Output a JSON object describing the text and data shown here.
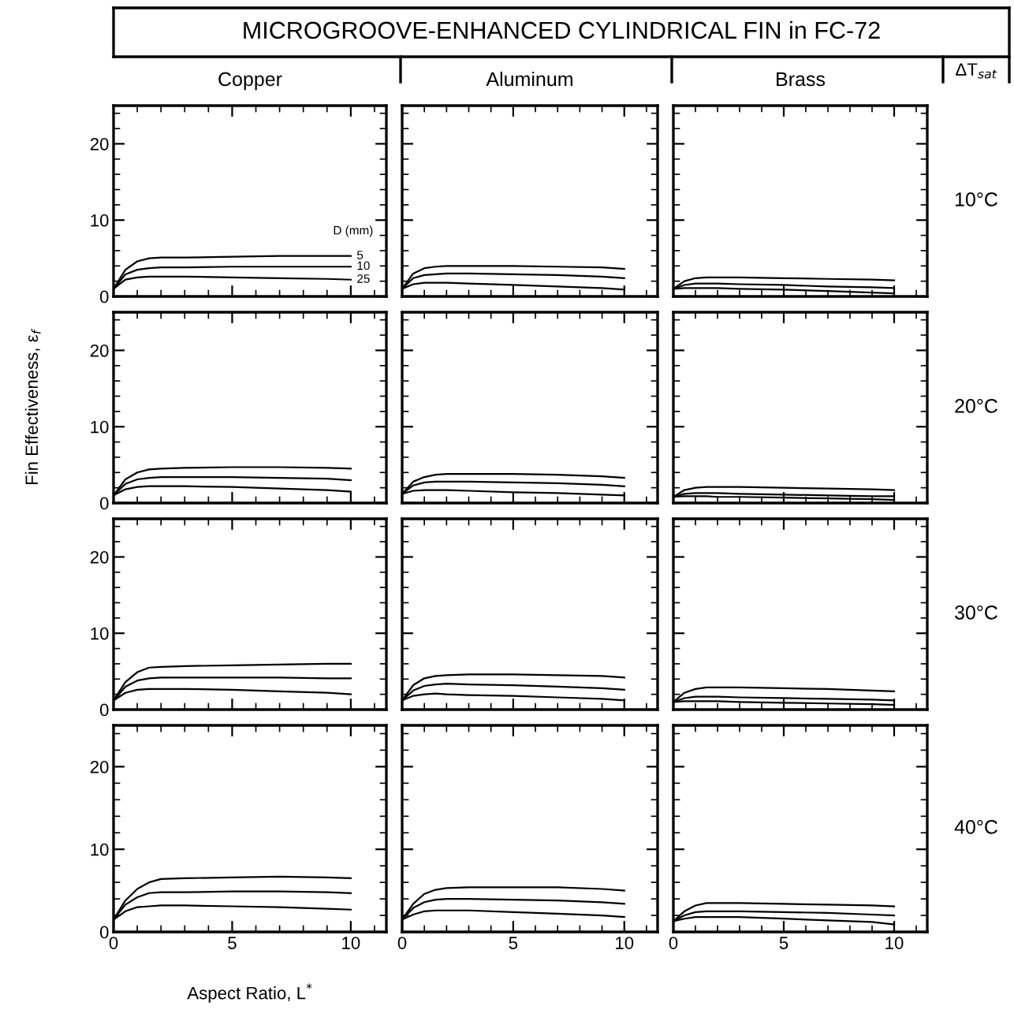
{
  "chart_data": [
    {
      "type": "line",
      "title": "Copper",
      "annotations": [
        "MICROGROOVE-ENHANCED CYLINDRICAL FIN in FC-72"
      ],
      "legend_title": "D (mm)",
      "legend": "right",
      "tick_labels": "y",
      "xlim": [
        0,
        11.5
      ],
      "ylim": [
        0,
        25
      ],
      "xticks": [
        0,
        5,
        10
      ],
      "yticks": [
        0,
        10,
        20
      ],
      "x": [
        0,
        0.5,
        1,
        1.5,
        2,
        3,
        5,
        7,
        9,
        10
      ],
      "series": [
        {
          "name": "5",
          "color": "#000000",
          "values": [
            1,
            3.5,
            4.6,
            5,
            5.1,
            5.1,
            5.2,
            5.3,
            5.3,
            5.3
          ]
        },
        {
          "name": "10",
          "color": "#000000",
          "values": [
            1,
            2.9,
            3.5,
            3.7,
            3.8,
            3.8,
            3.9,
            3.9,
            3.9,
            3.9
          ]
        },
        {
          "name": "25",
          "color": "#000000",
          "values": [
            1,
            2.2,
            2.5,
            2.6,
            2.6,
            2.6,
            2.5,
            2.4,
            2.3,
            2.2
          ]
        }
      ]
    },
    {
      "type": "line",
      "title": "Aluminum",
      "tick_labels": false,
      "xlim": [
        0,
        11.5
      ],
      "ylim": [
        0,
        25
      ],
      "xticks": [
        0,
        5,
        10
      ],
      "yticks": [
        0,
        10,
        20
      ],
      "x": [
        0,
        0.5,
        1,
        1.5,
        2,
        3,
        5,
        7,
        9,
        10
      ],
      "series": [
        {
          "color": "#000000",
          "values": [
            1,
            3.0,
            3.7,
            3.9,
            4,
            4,
            4,
            3.9,
            3.8,
            3.6
          ]
        },
        {
          "color": "#000000",
          "values": [
            1,
            2.4,
            2.8,
            2.9,
            3,
            3,
            2.9,
            2.8,
            2.6,
            2.4
          ]
        },
        {
          "color": "#000000",
          "values": [
            1,
            1.6,
            1.8,
            1.8,
            1.8,
            1.7,
            1.5,
            1.3,
            1.1,
            0.9
          ]
        }
      ]
    },
    {
      "type": "line",
      "title": "Brass",
      "annotations": [
        "ΔT$_{sat}$",
        "10°C"
      ],
      "tick_labels": false,
      "xlim": [
        0,
        11.5
      ],
      "ylim": [
        0,
        25
      ],
      "xticks": [
        0,
        5,
        10
      ],
      "yticks": [
        0,
        10,
        20
      ],
      "x": [
        0,
        0.5,
        1,
        1.5,
        2,
        3,
        5,
        7,
        9,
        10
      ],
      "series": [
        {
          "color": "#000000",
          "values": [
            1,
            2,
            2.4,
            2.5,
            2.5,
            2.5,
            2.4,
            2.3,
            2.2,
            2.1
          ]
        },
        {
          "color": "#000000",
          "values": [
            1,
            1.5,
            1.7,
            1.7,
            1.7,
            1.6,
            1.5,
            1.3,
            1.2,
            1.1
          ]
        },
        {
          "color": "#000000",
          "values": [
            1,
            1.1,
            1.1,
            1.1,
            1.1,
            1.0,
            0.9,
            0.7,
            0.5,
            0.4
          ]
        }
      ]
    },
    {
      "type": "line",
      "ylabel": "Fin Effectiveness, ε$_{f}$",
      "tick_labels": "y",
      "xlim": [
        0,
        11.5
      ],
      "ylim": [
        0,
        25
      ],
      "xticks": [
        0,
        5,
        10
      ],
      "yticks": [
        0,
        10,
        20
      ],
      "x": [
        0,
        0.5,
        1,
        1.5,
        2,
        3,
        5,
        7,
        9,
        10
      ],
      "series": [
        {
          "color": "#000000",
          "values": [
            1,
            3.1,
            4,
            4.4,
            4.5,
            4.6,
            4.7,
            4.7,
            4.6,
            4.5
          ]
        },
        {
          "color": "#000000",
          "values": [
            1,
            2.5,
            3.1,
            3.3,
            3.4,
            3.4,
            3.4,
            3.3,
            3.2,
            3.0
          ]
        },
        {
          "color": "#000000",
          "values": [
            1,
            1.8,
            2.1,
            2.2,
            2.2,
            2.2,
            2.1,
            1.9,
            1.7,
            1.5
          ]
        }
      ]
    },
    {
      "type": "line",
      "xlim": [
        0,
        11.5
      ],
      "ylim": [
        0,
        25
      ],
      "xticks": [
        0,
        5,
        10
      ],
      "yticks": [
        0,
        10,
        20
      ],
      "tick_labels": false,
      "x": [
        0,
        0.5,
        1,
        1.5,
        2,
        3,
        5,
        7,
        9,
        10
      ],
      "series": [
        {
          "color": "#000000",
          "values": [
            1.2,
            2.8,
            3.4,
            3.7,
            3.8,
            3.8,
            3.8,
            3.7,
            3.5,
            3.3
          ]
        },
        {
          "color": "#000000",
          "values": [
            1.2,
            2.3,
            2.7,
            2.8,
            2.8,
            2.8,
            2.7,
            2.6,
            2.4,
            2.2
          ]
        },
        {
          "color": "#000000",
          "values": [
            1.2,
            1.6,
            1.7,
            1.7,
            1.7,
            1.6,
            1.4,
            1.3,
            1.1,
            1.0
          ]
        }
      ]
    },
    {
      "type": "line",
      "annotations": [
        "20°C"
      ],
      "tick_labels": false,
      "xlim": [
        0,
        11.5
      ],
      "ylim": [
        0,
        25
      ],
      "xticks": [
        0,
        5,
        10
      ],
      "yticks": [
        0,
        10,
        20
      ],
      "x": [
        0,
        0.5,
        1,
        1.5,
        2,
        3,
        5,
        7,
        9,
        10
      ],
      "series": [
        {
          "color": "#000000",
          "values": [
            0.8,
            1.7,
            2.0,
            2.1,
            2.1,
            2.1,
            2.0,
            1.9,
            1.8,
            1.7
          ]
        },
        {
          "color": "#000000",
          "values": [
            0.8,
            1.2,
            1.3,
            1.3,
            1.3,
            1.2,
            1.1,
            1.0,
            0.9,
            0.9
          ]
        },
        {
          "color": "#000000",
          "values": [
            0.8,
            0.9,
            0.9,
            0.9,
            0.8,
            0.8,
            0.7,
            0.6,
            0.5,
            0.4
          ]
        }
      ]
    },
    {
      "type": "line",
      "xlim": [
        0,
        11.5
      ],
      "ylim": [
        0,
        25
      ],
      "xticks": [
        0,
        5,
        10
      ],
      "yticks": [
        0,
        10,
        20
      ],
      "tick_labels": "y",
      "x": [
        0,
        0.5,
        1,
        1.5,
        2,
        3,
        5,
        7,
        9,
        10
      ],
      "series": [
        {
          "color": "#000000",
          "values": [
            1.2,
            3.6,
            4.9,
            5.5,
            5.6,
            5.7,
            5.8,
            5.9,
            6.0,
            6.0
          ]
        },
        {
          "color": "#000000",
          "values": [
            1.2,
            3.0,
            3.8,
            4.1,
            4.2,
            4.2,
            4.2,
            4.2,
            4.1,
            4.1
          ]
        },
        {
          "color": "#000000",
          "values": [
            1.2,
            2.2,
            2.6,
            2.7,
            2.7,
            2.7,
            2.6,
            2.4,
            2.2,
            2.0
          ]
        }
      ]
    },
    {
      "type": "line",
      "xlim": [
        0,
        11.5
      ],
      "ylim": [
        0,
        25
      ],
      "xticks": [
        0,
        5,
        10
      ],
      "yticks": [
        0,
        10,
        20
      ],
      "tick_labels": false,
      "x": [
        0,
        0.5,
        1,
        1.5,
        2,
        3,
        5,
        7,
        9,
        10
      ],
      "series": [
        {
          "color": "#000000",
          "values": [
            1.2,
            3.2,
            4.1,
            4.4,
            4.5,
            4.6,
            4.6,
            4.5,
            4.4,
            4.2
          ]
        },
        {
          "color": "#000000",
          "values": [
            1.2,
            2.5,
            3.1,
            3.3,
            3.4,
            3.3,
            3.2,
            3.0,
            2.8,
            2.6
          ]
        },
        {
          "color": "#000000",
          "values": [
            1.2,
            1.8,
            2.0,
            2.1,
            2.0,
            1.9,
            1.8,
            1.6,
            1.4,
            1.2
          ]
        }
      ]
    },
    {
      "type": "line",
      "annotations": [
        "30°C"
      ],
      "tick_labels": false,
      "xlim": [
        0,
        11.5
      ],
      "ylim": [
        0,
        25
      ],
      "xticks": [
        0,
        5,
        10
      ],
      "yticks": [
        0,
        10,
        20
      ],
      "x": [
        0,
        0.5,
        1,
        1.5,
        2,
        3,
        5,
        7,
        9,
        10
      ],
      "series": [
        {
          "color": "#000000",
          "values": [
            1.0,
            2.2,
            2.7,
            2.9,
            2.9,
            2.9,
            2.8,
            2.7,
            2.5,
            2.4
          ]
        },
        {
          "color": "#000000",
          "values": [
            1.0,
            1.5,
            1.7,
            1.7,
            1.7,
            1.6,
            1.5,
            1.4,
            1.3,
            1.2
          ]
        },
        {
          "color": "#000000",
          "values": [
            1.0,
            1.1,
            1.1,
            1.1,
            1.1,
            1.0,
            0.9,
            0.8,
            0.7,
            0.6
          ]
        }
      ]
    },
    {
      "type": "line",
      "xlabel": "Aspect Ratio, L$^{*}$",
      "xlim": [
        0,
        11.5
      ],
      "ylim": [
        0,
        25
      ],
      "xticks": [
        0,
        5,
        10
      ],
      "yticks": [
        0,
        10,
        20
      ],
      "x": [
        0,
        0.5,
        1,
        1.5,
        2,
        3,
        5,
        7,
        9,
        10
      ],
      "series": [
        {
          "color": "#000000",
          "values": [
            1.5,
            3.8,
            5.2,
            6.0,
            6.4,
            6.5,
            6.6,
            6.7,
            6.6,
            6.5
          ]
        },
        {
          "color": "#000000",
          "values": [
            1.5,
            3.3,
            4.2,
            4.7,
            4.8,
            4.8,
            4.9,
            4.9,
            4.8,
            4.7
          ]
        },
        {
          "color": "#000000",
          "values": [
            1.5,
            2.5,
            3.0,
            3.1,
            3.2,
            3.2,
            3.1,
            3.0,
            2.8,
            2.7
          ]
        }
      ]
    },
    {
      "type": "line",
      "xlim": [
        0,
        11.5
      ],
      "ylim": [
        0,
        25
      ],
      "xticks": [
        0,
        5,
        10
      ],
      "yticks": [
        0,
        10,
        20
      ],
      "tick_labels": "x",
      "x": [
        0,
        0.5,
        1,
        1.5,
        2,
        3,
        5,
        7,
        9,
        10
      ],
      "series": [
        {
          "color": "#000000",
          "values": [
            1.5,
            3.4,
            4.6,
            5.1,
            5.3,
            5.4,
            5.4,
            5.4,
            5.2,
            5.0
          ]
        },
        {
          "color": "#000000",
          "values": [
            1.5,
            2.9,
            3.6,
            3.9,
            4.0,
            4.0,
            3.9,
            3.8,
            3.6,
            3.4
          ]
        },
        {
          "color": "#000000",
          "values": [
            1.5,
            2.1,
            2.5,
            2.6,
            2.6,
            2.6,
            2.4,
            2.2,
            2.0,
            1.8
          ]
        }
      ]
    },
    {
      "type": "line",
      "annotations": [
        "40°C"
      ],
      "tick_labels": "x",
      "xlim": [
        0,
        11.5
      ],
      "ylim": [
        0,
        25
      ],
      "xticks": [
        0,
        5,
        10
      ],
      "yticks": [
        0,
        10,
        20
      ],
      "x": [
        0,
        0.5,
        1,
        1.5,
        2,
        3,
        5,
        7,
        9,
        10
      ],
      "series": [
        {
          "color": "#000000",
          "values": [
            1.3,
            2.5,
            3.2,
            3.5,
            3.5,
            3.5,
            3.4,
            3.3,
            3.2,
            3.1
          ]
        },
        {
          "color": "#000000",
          "values": [
            1.3,
            2.0,
            2.4,
            2.5,
            2.5,
            2.5,
            2.4,
            2.3,
            2.1,
            2.0
          ]
        },
        {
          "color": "#000000",
          "values": [
            1.3,
            1.6,
            1.8,
            1.8,
            1.8,
            1.8,
            1.6,
            1.4,
            1.2,
            0.9
          ]
        }
      ]
    }
  ]
}
